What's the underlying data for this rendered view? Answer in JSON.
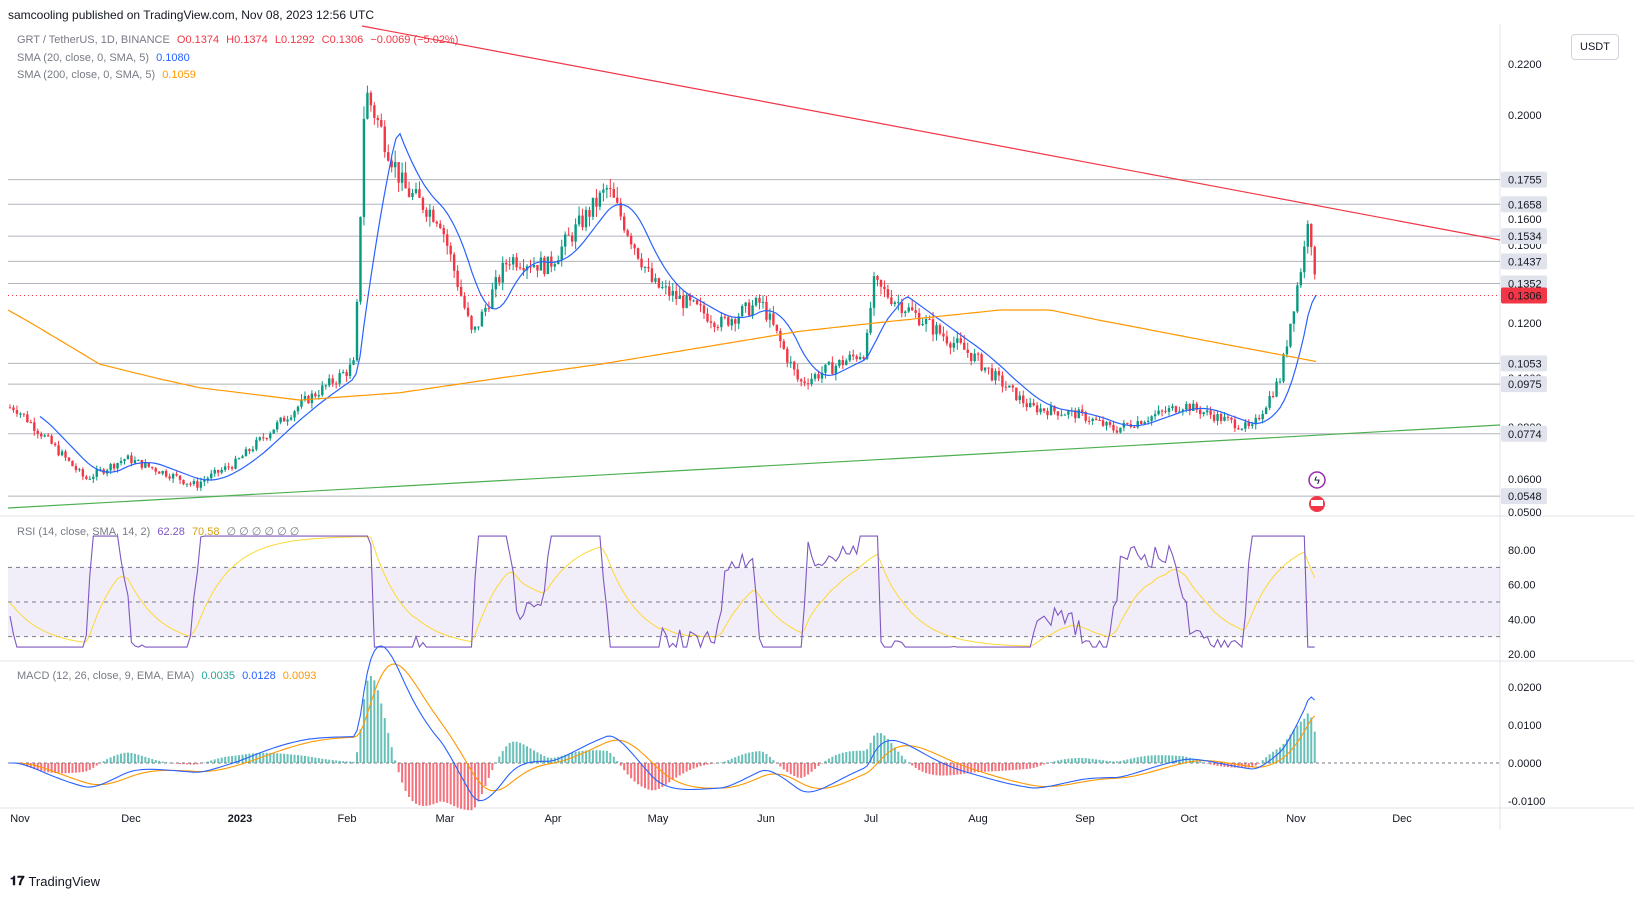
{
  "header": {
    "published": "samcooling published on TradingView.com, Nov 08, 2023 12:56 UTC"
  },
  "legend_main": {
    "symbol": "GRT / TetherUS, 1D, BINANCE",
    "o": "O0.1374",
    "h": "H0.1374",
    "l": "L0.1292",
    "c": "C0.1306",
    "change": "−0.0069 (−5.02%)",
    "sma20_label": "SMA (20, close, 0, SMA, 5)",
    "sma20_value": "0.1080",
    "sma200_label": "SMA (200, close, 0, SMA, 5)",
    "sma200_value": "0.1059"
  },
  "legend_rsi": {
    "label": "RSI (14, close, SMA, 14, 2)",
    "v1": "62.28",
    "v2": "70.58",
    "extra": "∅ ∅ ∅ ∅ ∅ ∅"
  },
  "legend_macd": {
    "label": "MACD (12, 26, close, 9, EMA, EMA)",
    "hist": "0.0035",
    "macd": "0.0128",
    "signal": "0.0093"
  },
  "currency_button": "USDT",
  "price_axis": {
    "ticks": [
      "0.2200",
      "0.2000",
      "0.1750",
      "0.1600",
      "0.1500",
      "0.1200",
      "0.1000",
      "0.0800",
      "0.0600",
      "0.0500"
    ],
    "levels": [
      "0.1755",
      "0.1658",
      "0.1534",
      "0.1437",
      "0.1352",
      "0.1053",
      "0.0975",
      "0.0774",
      "0.0548"
    ],
    "current_price": "0.1306"
  },
  "rsi_axis": {
    "ticks": [
      "80.00",
      "60.00",
      "40.00",
      "20.00"
    ]
  },
  "macd_axis": {
    "ticks": [
      "0.0200",
      "0.0100",
      "0.0000",
      "-0.0100"
    ]
  },
  "time_axis": {
    "labels": [
      "Nov",
      "Dec",
      "2023",
      "Feb",
      "Mar",
      "Apr",
      "May",
      "Jun",
      "Jul",
      "Aug",
      "Sep",
      "Oct",
      "Nov",
      "Dec"
    ]
  },
  "footer": {
    "brand": "TradingView"
  },
  "colors": {
    "up": "#089981",
    "down": "#f23645",
    "sma20": "#2962ff",
    "sma200": "#ff9800",
    "resistance": "#f23645",
    "support": "#4caf50",
    "rsi": "#7e57c2",
    "rsi_ma": "#fdd835"
  },
  "chart_data": {
    "type": "candlestick",
    "symbol": "GRT / TetherUS",
    "timeframe": "1D",
    "exchange": "BINANCE",
    "close_series_approx": [
      {
        "x": "2022-11",
        "y": 0.088
      },
      {
        "x": "2022-11-20",
        "y": 0.06
      },
      {
        "x": "2022-12",
        "y": 0.068
      },
      {
        "x": "2022-12-20",
        "y": 0.058
      },
      {
        "x": "2023-01",
        "y": 0.066
      },
      {
        "x": "2023-01-20",
        "y": 0.09
      },
      {
        "x": "2023-02-05",
        "y": 0.105
      },
      {
        "x": "2023-02-08",
        "y": 0.21
      },
      {
        "x": "2023-02-20",
        "y": 0.172
      },
      {
        "x": "2023-03-01",
        "y": 0.16
      },
      {
        "x": "2023-03-10",
        "y": 0.115
      },
      {
        "x": "2023-03-20",
        "y": 0.145
      },
      {
        "x": "2023-04",
        "y": 0.142
      },
      {
        "x": "2023-04-18",
        "y": 0.172
      },
      {
        "x": "2023-05",
        "y": 0.135
      },
      {
        "x": "2023-05-20",
        "y": 0.12
      },
      {
        "x": "2023-06",
        "y": 0.128
      },
      {
        "x": "2023-06-12",
        "y": 0.098
      },
      {
        "x": "2023-07",
        "y": 0.11
      },
      {
        "x": "2023-07-03",
        "y": 0.135
      },
      {
        "x": "2023-07-20",
        "y": 0.118
      },
      {
        "x": "2023-08",
        "y": 0.108
      },
      {
        "x": "2023-08-17",
        "y": 0.088
      },
      {
        "x": "2023-09",
        "y": 0.085
      },
      {
        "x": "2023-09-11",
        "y": 0.079
      },
      {
        "x": "2023-10",
        "y": 0.089
      },
      {
        "x": "2023-10-20",
        "y": 0.079
      },
      {
        "x": "2023-10-28",
        "y": 0.1
      },
      {
        "x": "2023-11-05",
        "y": 0.15
      },
      {
        "x": "2023-11-06",
        "y": 0.165
      },
      {
        "x": "2023-11-08",
        "y": 0.1306
      }
    ],
    "sma20": "0.1080",
    "sma200": "0.1059",
    "horizontal_levels": [
      0.1755,
      0.1658,
      0.1534,
      0.1437,
      0.1352,
      0.1053,
      0.0975,
      0.0774,
      0.0548
    ],
    "rsi": {
      "value": 62.28,
      "ma": 70.58,
      "upper": 70,
      "middle": 50,
      "lower": 30
    },
    "macd": {
      "histogram": 0.0035,
      "macd": 0.0128,
      "signal": 0.0093
    }
  }
}
